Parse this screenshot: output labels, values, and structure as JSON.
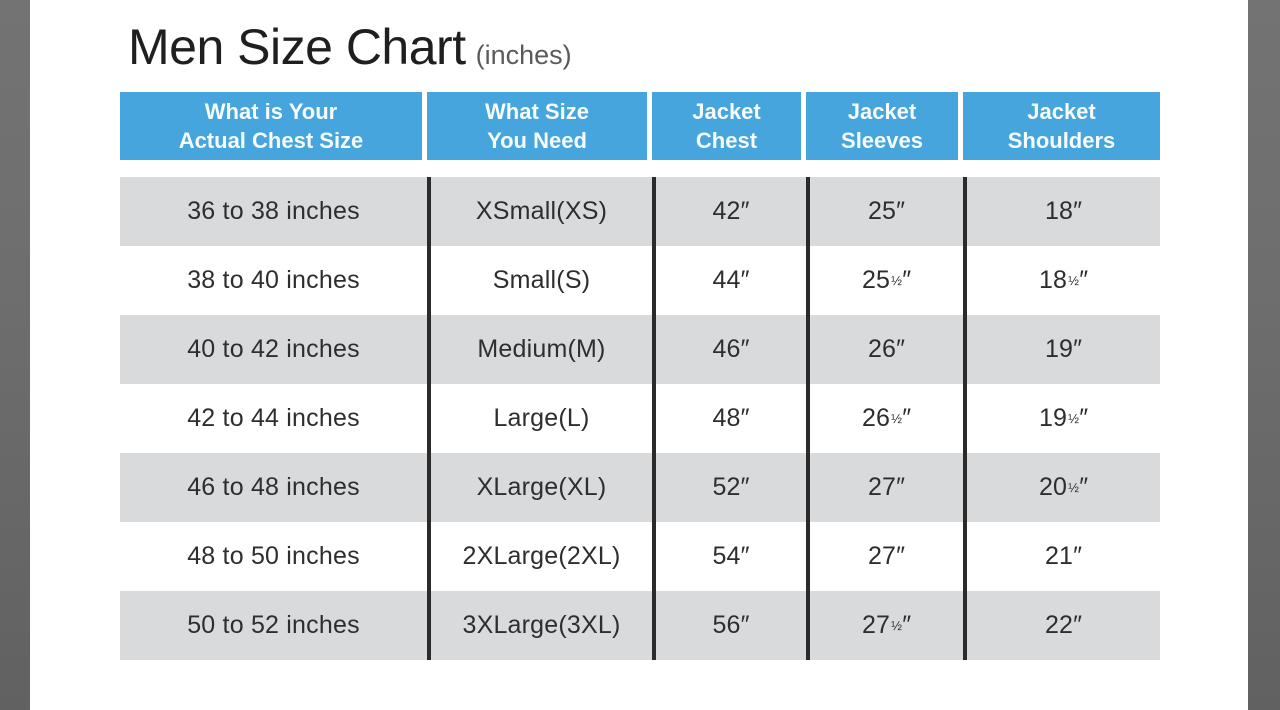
{
  "page": {
    "title": "Men Size Chart",
    "title_suffix": "(inches)"
  },
  "colors": {
    "header_bg": "#46a5dc",
    "header_text": "#ffffff",
    "row_alt_bg": "#d9dadb",
    "row_text": "#2e2e30",
    "divider_line": "#2b2b2b",
    "edge_band": "#6e6e6e",
    "title_text": "#1f1f21",
    "title_suffix_text": "#5a5a5d"
  },
  "table": {
    "columns": [
      {
        "line1": "What is Your",
        "line2": "Actual Chest Size"
      },
      {
        "line1": "What Size",
        "line2": "You Need"
      },
      {
        "line1": "Jacket",
        "line2": "Chest"
      },
      {
        "line1": "Jacket",
        "line2": "Sleeves"
      },
      {
        "line1": "Jacket",
        "line2": "Shoulders"
      }
    ],
    "rows": [
      [
        "36 to 38 inches",
        "XSmall(XS)",
        "42″",
        "25″",
        "18″"
      ],
      [
        "38 to 40 inches",
        "Small(S)",
        "44″",
        "25½″",
        "18½″"
      ],
      [
        "40 to 42 inches",
        "Medium(M)",
        "46″",
        "26″",
        "19″"
      ],
      [
        "42 to 44 inches",
        "Large(L)",
        "48″",
        "26½″",
        "19½″"
      ],
      [
        "46 to 48 inches",
        "XLarge(XL)",
        "52″",
        "27″",
        "20½″"
      ],
      [
        "48 to 50 inches",
        "2XLarge(2XL)",
        "54″",
        "27″",
        "21″"
      ],
      [
        "50 to 52 inches",
        "3XLarge(3XL)",
        "56″",
        "27½″",
        "22″"
      ]
    ]
  }
}
